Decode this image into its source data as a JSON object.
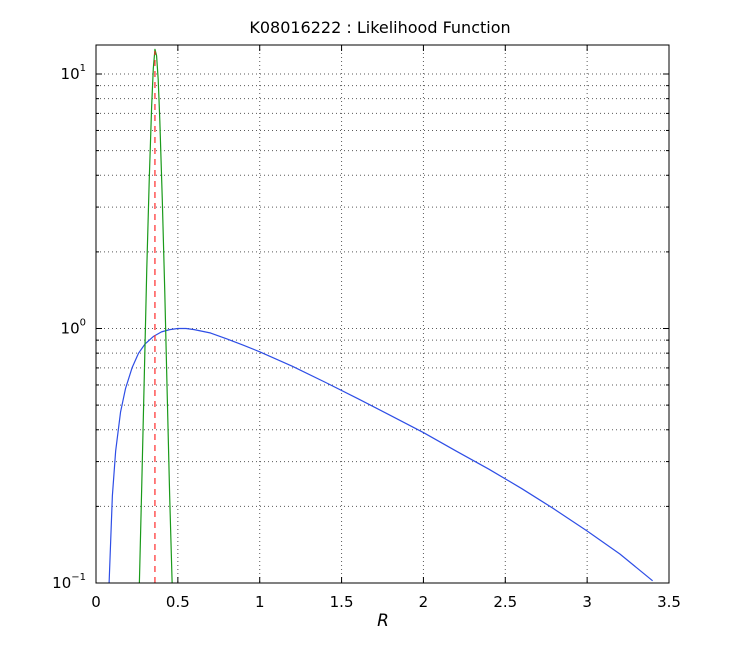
{
  "chart_data": {
    "type": "line",
    "title": "K08016222 : Likelihood Function",
    "xlabel": "R",
    "ylabel": "",
    "xlim": [
      0,
      3.5
    ],
    "ylim": [
      0.1,
      13
    ],
    "y_scale": "log",
    "grid": true,
    "x_ticks": [
      "0",
      "0.5",
      "1",
      "1.5",
      "2",
      "2.5",
      "3",
      "3.5"
    ],
    "y_ticks": [
      {
        "base": "10",
        "exp": "−1",
        "value": 0.1
      },
      {
        "base": "10",
        "exp": "0",
        "value": 1
      },
      {
        "base": "10",
        "exp": "1",
        "value": 10
      }
    ],
    "series": [
      {
        "color": "#2e4ee6",
        "style": "solid",
        "x": [
          0.08,
          0.1,
          0.12,
          0.15,
          0.18,
          0.22,
          0.26,
          0.3,
          0.35,
          0.4,
          0.45,
          0.5,
          0.55,
          0.6,
          0.7,
          0.8,
          0.9,
          1.0,
          1.2,
          1.4,
          1.6,
          1.8,
          2.0,
          2.2,
          2.4,
          2.6,
          2.8,
          3.0,
          3.2,
          3.4
        ],
        "y": [
          0.1,
          0.22,
          0.33,
          0.47,
          0.58,
          0.7,
          0.8,
          0.87,
          0.93,
          0.97,
          0.99,
          1.0,
          1.0,
          0.99,
          0.96,
          0.91,
          0.86,
          0.81,
          0.71,
          0.615,
          0.53,
          0.455,
          0.39,
          0.33,
          0.28,
          0.235,
          0.195,
          0.16,
          0.13,
          0.102
        ]
      },
      {
        "color": "#1a9a1a",
        "style": "solid",
        "x": [
          0.265,
          0.28,
          0.295,
          0.31,
          0.325,
          0.34,
          0.35,
          0.36,
          0.37,
          0.38,
          0.39,
          0.405,
          0.42,
          0.435,
          0.45,
          0.465
        ],
        "y": [
          0.1,
          0.25,
          0.65,
          1.7,
          3.8,
          7.5,
          10.5,
          12.5,
          11.8,
          9.5,
          6.5,
          3.2,
          1.4,
          0.55,
          0.22,
          0.1
        ]
      },
      {
        "color": "#ff2b2b",
        "style": "dashed",
        "x": [
          0.36,
          0.36
        ],
        "y": [
          0.1,
          12.3
        ]
      }
    ]
  }
}
